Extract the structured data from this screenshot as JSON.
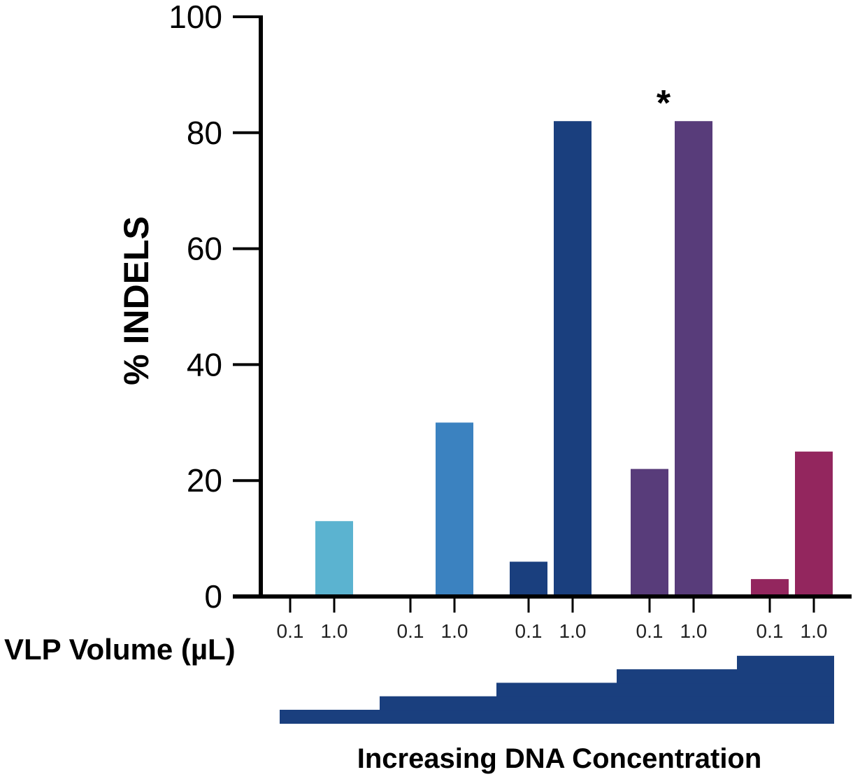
{
  "chart_data": {
    "type": "bar",
    "ylabel": "% INDELS",
    "xlabel": "VLP Volume (µL)",
    "ylim": [
      0,
      100
    ],
    "yticks": [
      "0",
      "20",
      "40",
      "60",
      "80",
      "100"
    ],
    "grid": false,
    "groups": [
      {
        "categories": [
          "0.1",
          "1.0"
        ],
        "values": [
          0,
          13
        ],
        "color": "#5BB3D0"
      },
      {
        "categories": [
          "0.1",
          "1.0"
        ],
        "values": [
          0,
          30
        ],
        "color": "#3B82C0"
      },
      {
        "categories": [
          "0.1",
          "1.0"
        ],
        "values": [
          6,
          82
        ],
        "color": "#1A3F7E"
      },
      {
        "categories": [
          "0.1",
          "1.0"
        ],
        "values": [
          22,
          82
        ],
        "color": "#583C7A",
        "annotation": "*"
      },
      {
        "categories": [
          "0.1",
          "1.0"
        ],
        "values": [
          3,
          25
        ],
        "color": "#93265E"
      }
    ],
    "concentration_label": "Increasing DNA Concentration",
    "concentration_color": "#1A3F7E"
  }
}
